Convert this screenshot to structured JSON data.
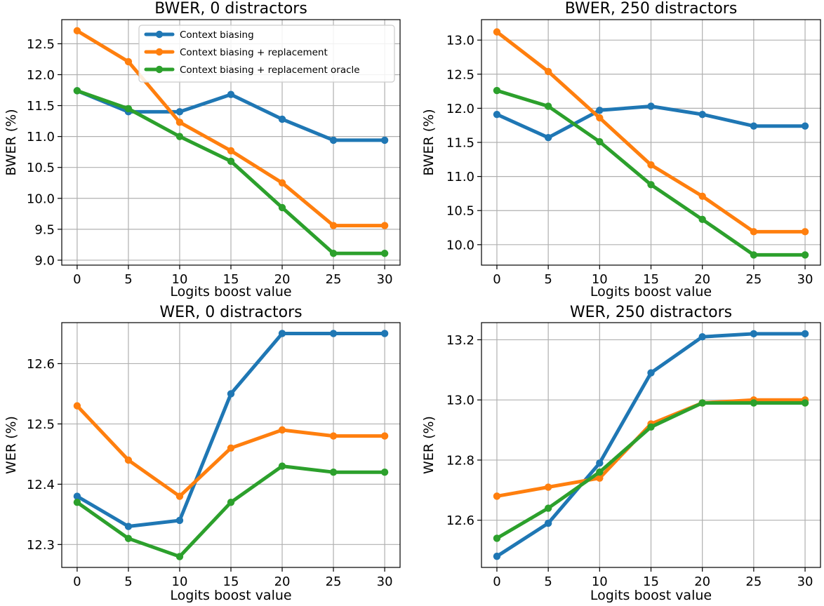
{
  "chart_data": [
    {
      "type": "line",
      "title": "BWER, 0 distractors",
      "xlabel": "Logits boost value",
      "ylabel": "BWER (%)",
      "x": [
        0,
        5,
        10,
        15,
        20,
        25,
        30
      ],
      "xticks": [
        "0",
        "5",
        "10",
        "15",
        "20",
        "25",
        "30"
      ],
      "xlim": [
        -1.5,
        31.5
      ],
      "yticks": [
        "9.0",
        "9.5",
        "10.0",
        "10.5",
        "11.0",
        "11.5",
        "12.0",
        "12.5"
      ],
      "ylim": [
        8.92,
        12.89
      ],
      "grid": true,
      "legend": "top-right",
      "series": [
        {
          "name": "Context biasing",
          "color": "#1f77b4",
          "values": [
            11.74,
            11.4,
            11.4,
            11.68,
            11.28,
            10.94,
            10.94
          ]
        },
        {
          "name": "Context biasing + replacement",
          "color": "#ff7f0e",
          "values": [
            12.71,
            12.21,
            11.23,
            10.77,
            10.25,
            9.56,
            9.56
          ]
        },
        {
          "name": "Context biasing + replacement oracle",
          "color": "#2ca02c",
          "values": [
            11.74,
            11.45,
            11.0,
            10.6,
            9.85,
            9.11,
            9.11
          ]
        }
      ]
    },
    {
      "type": "line",
      "title": "BWER, 250 distractors",
      "xlabel": "Logits boost value",
      "ylabel": "BWER (%)",
      "x": [
        0,
        5,
        10,
        15,
        20,
        25,
        30
      ],
      "xticks": [
        "0",
        "5",
        "10",
        "15",
        "20",
        "25",
        "30"
      ],
      "xlim": [
        -1.5,
        31.5
      ],
      "yticks": [
        "10.0",
        "10.5",
        "11.0",
        "11.5",
        "12.0",
        "12.5",
        "13.0"
      ],
      "ylim": [
        9.7,
        13.3
      ],
      "grid": true,
      "series": [
        {
          "name": "Context biasing",
          "color": "#1f77b4",
          "values": [
            11.91,
            11.57,
            11.97,
            12.03,
            11.91,
            11.74,
            11.74
          ]
        },
        {
          "name": "Context biasing + replacement",
          "color": "#ff7f0e",
          "values": [
            13.12,
            12.54,
            11.86,
            11.17,
            10.71,
            10.19,
            10.19
          ]
        },
        {
          "name": "Context biasing + replacement oracle",
          "color": "#2ca02c",
          "values": [
            12.26,
            12.03,
            11.51,
            10.88,
            10.37,
            9.85,
            9.85
          ]
        }
      ]
    },
    {
      "type": "line",
      "title": "WER, 0 distractors",
      "xlabel": "Logits boost value",
      "ylabel": "WER (%)",
      "x": [
        0,
        5,
        10,
        15,
        20,
        25,
        30
      ],
      "xticks": [
        "0",
        "5",
        "10",
        "15",
        "20",
        "25",
        "30"
      ],
      "xlim": [
        -1.5,
        31.5
      ],
      "yticks": [
        "12.3",
        "12.4",
        "12.5",
        "12.6"
      ],
      "ylim": [
        12.262,
        12.668
      ],
      "grid": true,
      "series": [
        {
          "name": "Context biasing",
          "color": "#1f77b4",
          "values": [
            12.38,
            12.33,
            12.34,
            12.55,
            12.65,
            12.65,
            12.65
          ]
        },
        {
          "name": "Context biasing + replacement",
          "color": "#ff7f0e",
          "values": [
            12.53,
            12.44,
            12.38,
            12.46,
            12.49,
            12.48,
            12.48
          ]
        },
        {
          "name": "Context biasing + replacement oracle",
          "color": "#2ca02c",
          "values": [
            12.37,
            12.31,
            12.28,
            12.37,
            12.43,
            12.42,
            12.42
          ]
        }
      ]
    },
    {
      "type": "line",
      "title": "WER, 250 distractors",
      "xlabel": "Logits boost value",
      "ylabel": "WER (%)",
      "x": [
        0,
        5,
        10,
        15,
        20,
        25,
        30
      ],
      "xticks": [
        "0",
        "5",
        "10",
        "15",
        "20",
        "25",
        "30"
      ],
      "xlim": [
        -1.5,
        31.5
      ],
      "yticks": [
        "12.6",
        "12.8",
        "13.0",
        "13.2"
      ],
      "ylim": [
        12.443,
        13.257
      ],
      "grid": true,
      "series": [
        {
          "name": "Context biasing",
          "color": "#1f77b4",
          "values": [
            12.48,
            12.59,
            12.79,
            13.09,
            13.21,
            13.22,
            13.22
          ]
        },
        {
          "name": "Context biasing + replacement",
          "color": "#ff7f0e",
          "values": [
            12.68,
            12.71,
            12.74,
            12.92,
            12.99,
            13.0,
            13.0
          ]
        },
        {
          "name": "Context biasing + replacement oracle",
          "color": "#2ca02c",
          "values": [
            12.54,
            12.64,
            12.76,
            12.91,
            12.99,
            12.99,
            12.99
          ]
        }
      ]
    }
  ]
}
